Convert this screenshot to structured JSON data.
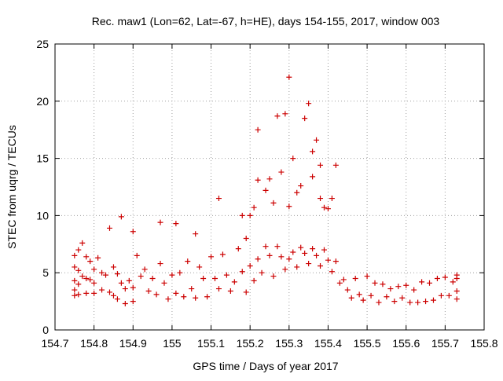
{
  "chart_data": {
    "type": "scatter",
    "title": "Rec. maw1 (Lon=62, Lat=-67, h=HE), days 154-155, 2017, window 003",
    "xlabel": "GPS time / Days of year 2017",
    "ylabel": "STEC from uqrg / TECUs",
    "xlim": [
      154.7,
      155.8
    ],
    "ylim": [
      0,
      25
    ],
    "x_ticks": [
      154.7,
      154.8,
      154.9,
      155,
      155.1,
      155.2,
      155.3,
      155.4,
      155.5,
      155.6,
      155.7,
      155.8
    ],
    "x_tick_labels": [
      "154.7",
      "154.8",
      "154.9",
      "155",
      "155.1",
      "155.2",
      "155.3",
      "155.4",
      "155.5",
      "155.6",
      "155.7",
      "155.8"
    ],
    "y_ticks": [
      0,
      5,
      10,
      15,
      20,
      25
    ],
    "y_tick_labels": [
      "0",
      "5",
      "10",
      "15",
      "20",
      "25"
    ],
    "grid": true,
    "marker": "+",
    "marker_color": "#cc0000",
    "series": [
      {
        "x": [
          154.75,
          154.75,
          154.75,
          154.75,
          154.75,
          154.76,
          154.76,
          154.76,
          154.76,
          154.77,
          154.77,
          154.78,
          154.78,
          154.78,
          154.79,
          154.79,
          154.8,
          154.8,
          154.8,
          154.81,
          154.82,
          154.82,
          154.83,
          154.84,
          154.85,
          154.85,
          154.86,
          154.86,
          154.87,
          154.88,
          154.88,
          154.89,
          154.9,
          154.9,
          154.91,
          154.92,
          154.93,
          154.94,
          154.95,
          154.96,
          154.97,
          154.98,
          154.99,
          155.0,
          155.01,
          155.02,
          155.03,
          155.04,
          155.05,
          155.06,
          155.07,
          155.08,
          155.09,
          155.1,
          155.11,
          155.12,
          155.13,
          155.14,
          155.15,
          155.16,
          155.17,
          155.18,
          155.19,
          155.2,
          155.21,
          155.22,
          155.23,
          155.24,
          155.25,
          155.26,
          155.27,
          155.28,
          155.29,
          155.3,
          155.31,
          155.32,
          155.33,
          155.34,
          155.35,
          155.36,
          155.37,
          155.38,
          155.39,
          155.4,
          155.41,
          155.42,
          155.43,
          155.44,
          155.45,
          155.46,
          155.47,
          155.48,
          155.49,
          155.5,
          155.51,
          155.52,
          155.53,
          155.54,
          155.55,
          155.56,
          155.57,
          155.58,
          155.59,
          155.6,
          155.61,
          155.62,
          155.63,
          155.64,
          155.65,
          155.66,
          155.67,
          155.68,
          155.69,
          155.7,
          155.71,
          155.72,
          155.73,
          155.73,
          155.73,
          155.73,
          154.87,
          154.84,
          154.9,
          154.97,
          155.01,
          155.06,
          155.12,
          155.18,
          155.22,
          155.25,
          155.27,
          155.28,
          155.29,
          155.3,
          155.31,
          155.33,
          155.34,
          155.35,
          155.36,
          155.37,
          155.38,
          155.39,
          155.4,
          155.41,
          155.42,
          155.22,
          155.24,
          155.26,
          155.21,
          155.2,
          155.19,
          155.3,
          155.32,
          155.36,
          155.38
        ],
        "y": [
          6.5,
          5.5,
          4.3,
          3.5,
          3.0,
          7.0,
          5.2,
          4.0,
          3.1,
          7.6,
          4.7,
          6.4,
          4.5,
          3.2,
          6.0,
          4.4,
          5.3,
          4.1,
          3.2,
          6.3,
          5.0,
          3.5,
          4.8,
          3.3,
          5.5,
          3.0,
          4.9,
          2.7,
          4.1,
          3.6,
          2.3,
          4.3,
          3.7,
          2.5,
          6.5,
          4.7,
          5.3,
          3.4,
          4.5,
          3.1,
          5.8,
          4.1,
          2.7,
          4.8,
          3.2,
          5.0,
          2.9,
          6.0,
          3.6,
          2.8,
          5.5,
          4.5,
          2.9,
          6.4,
          4.5,
          3.6,
          6.6,
          4.8,
          3.4,
          4.2,
          7.1,
          5.1,
          3.3,
          5.6,
          4.3,
          6.2,
          5.0,
          7.3,
          6.5,
          4.7,
          7.3,
          6.4,
          5.3,
          6.2,
          6.8,
          5.5,
          7.2,
          6.7,
          5.8,
          7.1,
          6.5,
          5.6,
          7.0,
          6.1,
          5.1,
          6.0,
          4.1,
          4.4,
          3.5,
          2.8,
          4.5,
          3.1,
          2.6,
          4.7,
          3.0,
          4.1,
          2.4,
          4.0,
          2.9,
          3.6,
          2.5,
          3.8,
          2.8,
          3.9,
          2.4,
          3.5,
          2.4,
          4.2,
          2.5,
          4.1,
          2.6,
          4.5,
          3.0,
          4.6,
          3.0,
          4.2,
          4.5,
          3.4,
          2.7,
          4.8,
          9.9,
          8.9,
          8.6,
          9.4,
          9.3,
          8.4,
          11.5,
          10.0,
          17.5,
          13.2,
          18.7,
          13.8,
          18.9,
          22.1,
          15.0,
          12.6,
          18.5,
          19.8,
          13.4,
          16.6,
          11.5,
          10.7,
          10.6,
          11.5,
          14.4,
          13.1,
          12.2,
          11.1,
          10.7,
          10.0,
          8.0,
          10.8,
          12.0,
          15.6,
          14.4
        ]
      }
    ]
  }
}
